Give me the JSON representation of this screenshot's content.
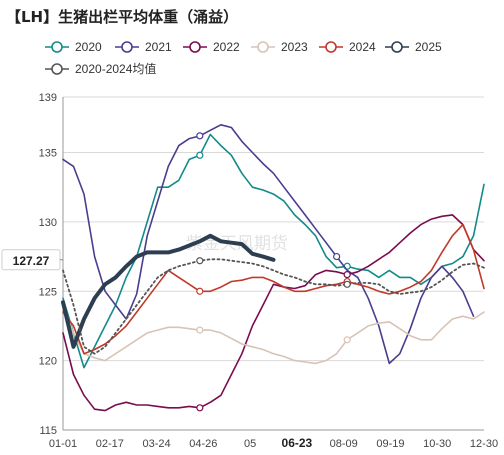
{
  "chart_data": {
    "type": "line",
    "title": "【LH】生猪出栏平均体重（涌益）",
    "ylim": [
      115,
      139
    ],
    "y_ticks": [
      115,
      120,
      125,
      130,
      135,
      139
    ],
    "x_ticks": [
      "01-01",
      "02-17",
      "03-24",
      "04-26",
      "05",
      "06-23",
      "08-09",
      "09-19",
      "10-30",
      "12-30"
    ],
    "x_tick_emphasis": "06-23",
    "current_value_label": "127.27",
    "watermark": "紫金天风期货",
    "legend_position": "top",
    "grid": true,
    "series": [
      {
        "name": "2020",
        "color": "#138a8a",
        "width": 1.6,
        "dash": "",
        "marker": "circle",
        "points": [
          [
            0,
            124.5
          ],
          [
            1,
            122
          ],
          [
            2,
            119.5
          ],
          [
            3,
            121
          ],
          [
            4,
            122.5
          ],
          [
            5,
            124
          ],
          [
            6,
            126
          ],
          [
            7,
            127.5
          ],
          [
            8,
            130
          ],
          [
            9,
            132.5
          ],
          [
            10,
            132.5
          ],
          [
            11,
            133
          ],
          [
            12,
            134.5
          ],
          [
            13,
            134.8
          ],
          [
            14,
            136.3
          ],
          [
            15,
            135.5
          ],
          [
            16,
            134.8
          ],
          [
            17,
            133.5
          ],
          [
            18,
            132.5
          ],
          [
            19,
            132.3
          ],
          [
            20,
            132
          ],
          [
            21,
            131.5
          ],
          [
            22,
            130.5
          ],
          [
            23,
            129.8
          ],
          [
            24,
            129
          ],
          [
            25,
            127.5
          ],
          [
            26,
            126.7
          ],
          [
            27,
            126.8
          ],
          [
            28,
            126.6
          ],
          [
            29,
            126.5
          ],
          [
            30,
            126
          ],
          [
            31,
            126.5
          ],
          [
            32,
            126
          ],
          [
            33,
            126
          ],
          [
            34,
            125.5
          ],
          [
            35,
            126
          ],
          [
            36,
            126.8
          ],
          [
            37,
            127
          ],
          [
            38,
            127.5
          ],
          [
            39,
            129
          ],
          [
            40,
            132.7
          ]
        ]
      },
      {
        "name": "2021",
        "color": "#4a3d8f",
        "width": 1.6,
        "dash": "",
        "marker": "circle",
        "points": [
          [
            0,
            134.5
          ],
          [
            1,
            134
          ],
          [
            2,
            132
          ],
          [
            3,
            127.5
          ],
          [
            4,
            125
          ],
          [
            5,
            124
          ],
          [
            6,
            123
          ],
          [
            7,
            124.8
          ],
          [
            8,
            129
          ],
          [
            9,
            131.5
          ],
          [
            10,
            134
          ],
          [
            11,
            135.5
          ],
          [
            12,
            136
          ],
          [
            13,
            136.2
          ],
          [
            14,
            136.6
          ],
          [
            15,
            137
          ],
          [
            16,
            136.8
          ],
          [
            17,
            135.8
          ],
          [
            18,
            135
          ],
          [
            19,
            134.2
          ],
          [
            20,
            133.5
          ],
          [
            21,
            132.5
          ],
          [
            22,
            131.5
          ],
          [
            23,
            130.5
          ],
          [
            24,
            129.5
          ],
          [
            25,
            128.5
          ],
          [
            26,
            127.5
          ],
          [
            27,
            126.5
          ],
          [
            28,
            126
          ],
          [
            29,
            124.5
          ],
          [
            30,
            122.5
          ],
          [
            31,
            119.8
          ],
          [
            32,
            120.5
          ],
          [
            33,
            122.3
          ],
          [
            34,
            124.5
          ],
          [
            35,
            126
          ],
          [
            36,
            126.8
          ],
          [
            37,
            126
          ],
          [
            38,
            125
          ],
          [
            39,
            123.2
          ]
        ]
      },
      {
        "name": "2022",
        "color": "#7a0c4e",
        "width": 1.6,
        "dash": "",
        "marker": "circle",
        "points": [
          [
            0,
            122
          ],
          [
            1,
            119
          ],
          [
            2,
            117.5
          ],
          [
            3,
            116.5
          ],
          [
            4,
            116.4
          ],
          [
            5,
            116.8
          ],
          [
            6,
            117
          ],
          [
            7,
            116.8
          ],
          [
            8,
            116.8
          ],
          [
            9,
            116.7
          ],
          [
            10,
            116.6
          ],
          [
            11,
            116.6
          ],
          [
            12,
            116.7
          ],
          [
            13,
            116.6
          ],
          [
            14,
            117
          ],
          [
            15,
            117.5
          ],
          [
            16,
            119
          ],
          [
            17,
            120.5
          ],
          [
            18,
            122.5
          ],
          [
            19,
            124
          ],
          [
            20,
            125.5
          ],
          [
            21,
            125.3
          ],
          [
            22,
            125.2
          ],
          [
            23,
            125.4
          ],
          [
            24,
            126.2
          ],
          [
            25,
            126.5
          ],
          [
            26,
            126.4
          ],
          [
            27,
            126.2
          ],
          [
            28,
            126.4
          ],
          [
            29,
            126.8
          ],
          [
            30,
            127.3
          ],
          [
            31,
            127.8
          ],
          [
            32,
            128.5
          ],
          [
            33,
            129.2
          ],
          [
            34,
            129.8
          ],
          [
            35,
            130.2
          ],
          [
            36,
            130.4
          ],
          [
            37,
            130.5
          ],
          [
            38,
            129.8
          ],
          [
            39,
            128
          ],
          [
            40,
            127.2
          ]
        ]
      },
      {
        "name": "2023",
        "color": "#d9c3b5",
        "width": 1.6,
        "dash": "",
        "marker": "circle",
        "points": [
          [
            0,
            124
          ],
          [
            1,
            122
          ],
          [
            2,
            120.5
          ],
          [
            3,
            120.2
          ],
          [
            4,
            120
          ],
          [
            5,
            120.5
          ],
          [
            6,
            121
          ],
          [
            7,
            121.5
          ],
          [
            8,
            122
          ],
          [
            9,
            122.2
          ],
          [
            10,
            122.4
          ],
          [
            11,
            122.4
          ],
          [
            12,
            122.3
          ],
          [
            13,
            122.2
          ],
          [
            14,
            122.2
          ],
          [
            15,
            122
          ],
          [
            16,
            121.6
          ],
          [
            17,
            121.2
          ],
          [
            18,
            121
          ],
          [
            19,
            120.8
          ],
          [
            20,
            120.5
          ],
          [
            21,
            120.3
          ],
          [
            22,
            120
          ],
          [
            23,
            119.9
          ],
          [
            24,
            119.8
          ],
          [
            25,
            120
          ],
          [
            26,
            120.5
          ],
          [
            27,
            121.5
          ],
          [
            28,
            122
          ],
          [
            29,
            122.5
          ],
          [
            30,
            122.7
          ],
          [
            31,
            122.8
          ],
          [
            32,
            122.3
          ],
          [
            33,
            121.8
          ],
          [
            34,
            121.5
          ],
          [
            35,
            121.5
          ],
          [
            36,
            122.3
          ],
          [
            37,
            123
          ],
          [
            38,
            123.2
          ],
          [
            39,
            123
          ],
          [
            40,
            123.5
          ]
        ]
      },
      {
        "name": "2024",
        "color": "#c0392b",
        "width": 1.6,
        "dash": "",
        "marker": "circle",
        "points": [
          [
            0,
            123.5
          ],
          [
            1,
            122.5
          ],
          [
            2,
            120.5
          ],
          [
            3,
            120.8
          ],
          [
            4,
            121.2
          ],
          [
            5,
            121.8
          ],
          [
            6,
            122.5
          ],
          [
            7,
            123.5
          ],
          [
            8,
            124.5
          ],
          [
            9,
            125.5
          ],
          [
            10,
            126.5
          ],
          [
            11,
            126
          ],
          [
            12,
            125.5
          ],
          [
            13,
            125
          ],
          [
            14,
            125
          ],
          [
            15,
            125.3
          ],
          [
            16,
            125.7
          ],
          [
            17,
            125.8
          ],
          [
            18,
            126
          ],
          [
            19,
            126
          ],
          [
            20,
            125.7
          ],
          [
            21,
            125.3
          ],
          [
            22,
            125
          ],
          [
            23,
            125
          ],
          [
            24,
            125.2
          ],
          [
            25,
            125.4
          ],
          [
            26,
            125.5
          ],
          [
            27,
            125.7
          ],
          [
            28,
            125.5
          ],
          [
            29,
            125.3
          ],
          [
            30,
            125
          ],
          [
            31,
            124.8
          ],
          [
            32,
            125
          ],
          [
            33,
            125.3
          ],
          [
            34,
            125.7
          ],
          [
            35,
            126.5
          ],
          [
            36,
            127.8
          ],
          [
            37,
            129
          ],
          [
            38,
            129.8
          ],
          [
            39,
            128
          ],
          [
            40,
            125.2
          ]
        ]
      },
      {
        "name": "2025",
        "color": "#2c3e50",
        "width": 4,
        "dash": "",
        "marker": "circle",
        "points": [
          [
            0,
            124.2
          ],
          [
            1,
            121
          ],
          [
            2,
            123
          ],
          [
            3,
            124.5
          ],
          [
            4,
            125.5
          ],
          [
            5,
            126
          ],
          [
            6,
            126.8
          ],
          [
            7,
            127.5
          ],
          [
            8,
            127.8
          ],
          [
            9,
            127.8
          ],
          [
            10,
            127.8
          ],
          [
            11,
            128
          ],
          [
            12,
            128.3
          ],
          [
            13,
            128.6
          ],
          [
            14,
            129
          ],
          [
            15,
            128.6
          ],
          [
            16,
            128.5
          ],
          [
            17,
            128.4
          ],
          [
            18,
            127.7
          ],
          [
            19,
            127.5
          ],
          [
            20,
            127.27
          ]
        ]
      },
      {
        "name": "2020-2024均值",
        "color": "#555555",
        "width": 1.8,
        "dash": "2,3",
        "marker": "circle",
        "points": [
          [
            0,
            126.5
          ],
          [
            1,
            124
          ],
          [
            2,
            121
          ],
          [
            3,
            120.5
          ],
          [
            4,
            121
          ],
          [
            5,
            122
          ],
          [
            6,
            123
          ],
          [
            7,
            124
          ],
          [
            8,
            125
          ],
          [
            9,
            126
          ],
          [
            10,
            126.5
          ],
          [
            11,
            126.8
          ],
          [
            12,
            127
          ],
          [
            13,
            127.2
          ],
          [
            14,
            127.3
          ],
          [
            15,
            127.3
          ],
          [
            16,
            127.2
          ],
          [
            17,
            127.1
          ],
          [
            18,
            127
          ],
          [
            19,
            126.8
          ],
          [
            20,
            126.5
          ],
          [
            21,
            126.2
          ],
          [
            22,
            126
          ],
          [
            23,
            125.7
          ],
          [
            24,
            125.5
          ],
          [
            25,
            125.5
          ],
          [
            26,
            125.4
          ],
          [
            27,
            125.5
          ],
          [
            28,
            125.6
          ],
          [
            29,
            125.6
          ],
          [
            30,
            125.5
          ],
          [
            31,
            125
          ],
          [
            32,
            124.8
          ],
          [
            33,
            124.9
          ],
          [
            34,
            125
          ],
          [
            35,
            125.3
          ],
          [
            36,
            125.8
          ],
          [
            37,
            126.4
          ],
          [
            38,
            126.9
          ],
          [
            39,
            127
          ],
          [
            40,
            126.7
          ]
        ]
      }
    ]
  }
}
